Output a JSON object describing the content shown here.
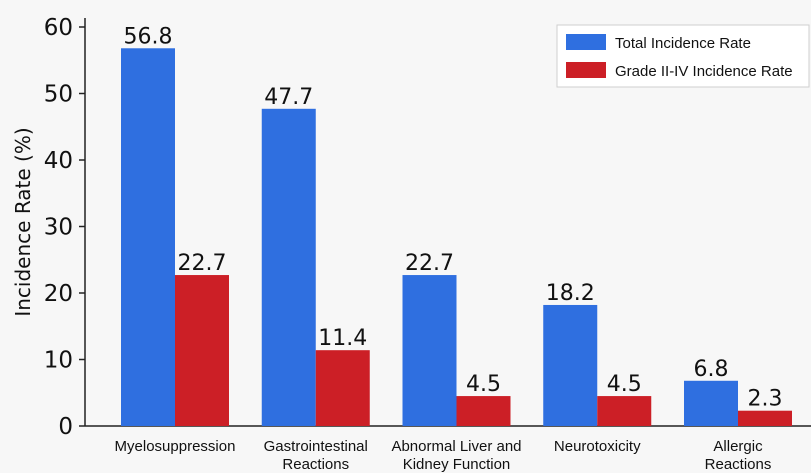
{
  "chart_data": {
    "type": "bar",
    "title": "",
    "xlabel": "",
    "ylabel": "Incidence Rate (%)",
    "ylim": [
      0,
      60
    ],
    "yticks": [
      0,
      10,
      20,
      30,
      40,
      50,
      60
    ],
    "grid": false,
    "legend_position": "top-right",
    "categories": [
      [
        "Myelosuppression"
      ],
      [
        "Gastrointestinal",
        "Reactions"
      ],
      [
        "Abnormal Liver and",
        "Kidney Function"
      ],
      [
        "Neurotoxicity"
      ],
      [
        "Allergic",
        "Reactions"
      ]
    ],
    "series": [
      {
        "name": "Total Incidence Rate",
        "color": "#2f6fe0",
        "values": [
          56.8,
          47.7,
          22.7,
          18.2,
          6.8
        ]
      },
      {
        "name": "Grade II-IV Incidence Rate",
        "color": "#cc1f26",
        "values": [
          22.7,
          11.4,
          4.5,
          4.5,
          2.3
        ]
      }
    ]
  }
}
